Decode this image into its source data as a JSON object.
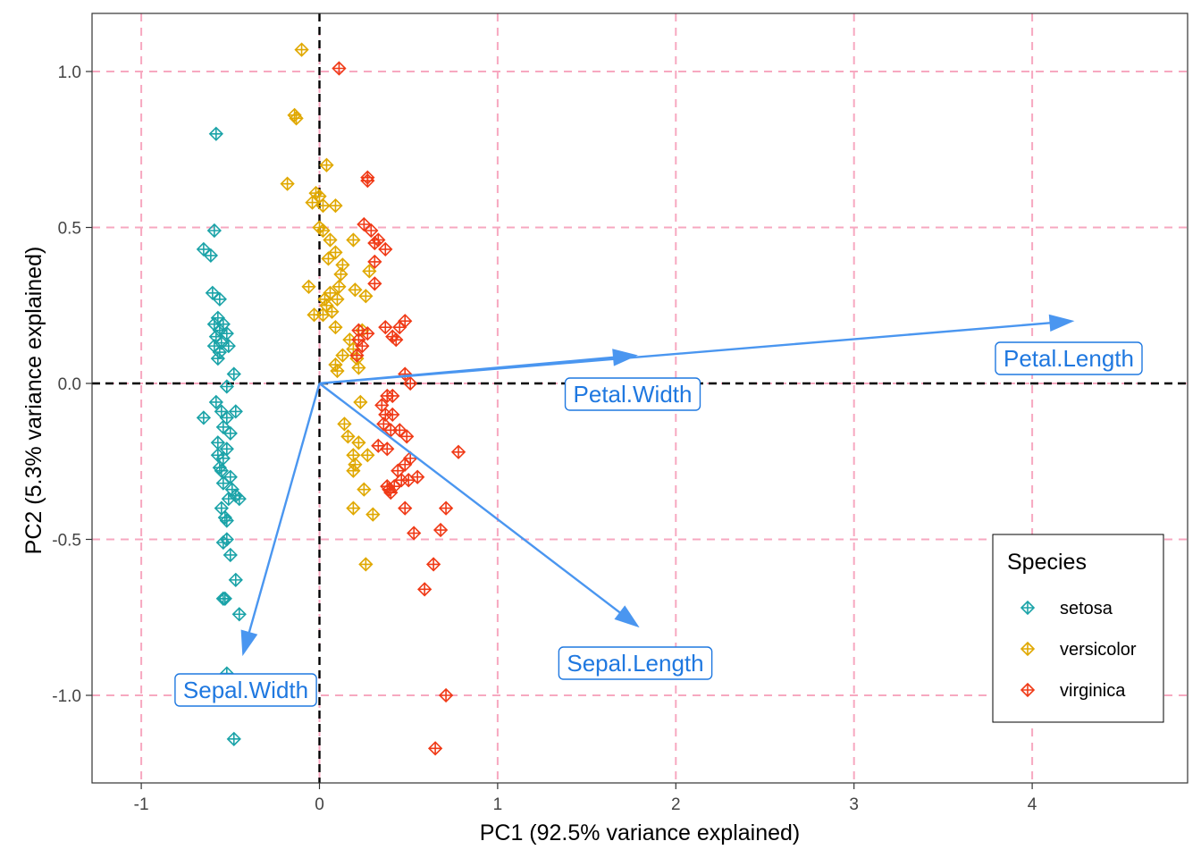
{
  "chart_data": {
    "type": "scatter",
    "xlabel": "PC1 (92.5% variance explained)",
    "ylabel": "PC2 (5.3% variance explained)",
    "xlim": [
      -1.27,
      4.85
    ],
    "ylim": [
      -1.28,
      1.18
    ],
    "x_ticks": [
      -1,
      0,
      1,
      2,
      3,
      4
    ],
    "y_ticks": [
      -1.0,
      -0.5,
      0.0,
      0.5,
      1.0
    ],
    "x_tick_labels": [
      "-1",
      "0",
      "1",
      "2",
      "3",
      "4"
    ],
    "y_tick_labels": [
      "-1.0",
      "-0.5",
      "0.0",
      "0.5",
      "1.0"
    ],
    "grid": true,
    "grid_style": "dashed",
    "grid_color": "#f7a8c0",
    "zero_lines_color": "#000000",
    "legend": {
      "title": "Species",
      "placement": "bottom-right",
      "entries": [
        "setosa",
        "versicolor",
        "virginica"
      ]
    },
    "series": [
      {
        "name": "setosa",
        "color": "#1ba3a8",
        "points": [
          [
            -0.58,
            0.8
          ],
          [
            -0.59,
            0.49
          ],
          [
            -0.65,
            0.43
          ],
          [
            -0.61,
            0.41
          ],
          [
            -0.6,
            0.29
          ],
          [
            -0.56,
            0.27
          ],
          [
            -0.57,
            0.21
          ],
          [
            -0.59,
            0.19
          ],
          [
            -0.54,
            0.19
          ],
          [
            -0.56,
            0.17
          ],
          [
            -0.52,
            0.16
          ],
          [
            -0.58,
            0.15
          ],
          [
            -0.55,
            0.13
          ],
          [
            -0.59,
            0.12
          ],
          [
            -0.51,
            0.12
          ],
          [
            -0.56,
            0.1
          ],
          [
            -0.57,
            0.08
          ],
          [
            -0.48,
            0.03
          ],
          [
            -0.52,
            -0.01
          ],
          [
            -0.58,
            -0.06
          ],
          [
            -0.55,
            -0.09
          ],
          [
            -0.47,
            -0.09
          ],
          [
            -0.52,
            -0.11
          ],
          [
            -0.65,
            -0.11
          ],
          [
            -0.54,
            -0.14
          ],
          [
            -0.5,
            -0.16
          ],
          [
            -0.57,
            -0.19
          ],
          [
            -0.52,
            -0.21
          ],
          [
            -0.57,
            -0.23
          ],
          [
            -0.54,
            -0.24
          ],
          [
            -0.56,
            -0.27
          ],
          [
            -0.55,
            -0.28
          ],
          [
            -0.5,
            -0.3
          ],
          [
            -0.54,
            -0.32
          ],
          [
            -0.49,
            -0.34
          ],
          [
            -0.47,
            -0.36
          ],
          [
            -0.51,
            -0.37
          ],
          [
            -0.45,
            -0.37
          ],
          [
            -0.53,
            -0.43
          ],
          [
            -0.52,
            -0.44
          ],
          [
            -0.52,
            -0.5
          ],
          [
            -0.54,
            -0.51
          ],
          [
            -0.5,
            -0.55
          ],
          [
            -0.47,
            -0.63
          ],
          [
            -0.53,
            -0.69
          ],
          [
            -0.54,
            -0.69
          ],
          [
            -0.45,
            -0.74
          ],
          [
            -0.52,
            -0.93
          ],
          [
            -0.48,
            -1.14
          ],
          [
            -0.55,
            -0.4
          ]
        ]
      },
      {
        "name": "versicolor",
        "color": "#e0a800",
        "points": [
          [
            -0.1,
            1.07
          ],
          [
            -0.14,
            0.86
          ],
          [
            -0.13,
            0.85
          ],
          [
            0.04,
            0.7
          ],
          [
            -0.18,
            0.64
          ],
          [
            -0.02,
            0.61
          ],
          [
            0.0,
            0.6
          ],
          [
            -0.04,
            0.58
          ],
          [
            0.09,
            0.57
          ],
          [
            0.02,
            0.57
          ],
          [
            0.0,
            0.5
          ],
          [
            0.02,
            0.49
          ],
          [
            0.06,
            0.46
          ],
          [
            0.19,
            0.46
          ],
          [
            0.09,
            0.42
          ],
          [
            0.05,
            0.4
          ],
          [
            0.13,
            0.38
          ],
          [
            0.28,
            0.36
          ],
          [
            0.12,
            0.35
          ],
          [
            -0.06,
            0.31
          ],
          [
            0.11,
            0.31
          ],
          [
            0.2,
            0.3
          ],
          [
            0.06,
            0.29
          ],
          [
            0.03,
            0.27
          ],
          [
            0.1,
            0.27
          ],
          [
            0.26,
            0.28
          ],
          [
            0.04,
            0.25
          ],
          [
            0.07,
            0.23
          ],
          [
            0.02,
            0.22
          ],
          [
            -0.03,
            0.22
          ],
          [
            0.09,
            0.18
          ],
          [
            0.24,
            0.17
          ],
          [
            0.17,
            0.14
          ],
          [
            0.19,
            0.11
          ],
          [
            0.13,
            0.09
          ],
          [
            0.21,
            0.08
          ],
          [
            0.22,
            0.05
          ],
          [
            0.09,
            0.06
          ],
          [
            0.1,
            0.04
          ],
          [
            0.23,
            -0.06
          ],
          [
            0.14,
            -0.13
          ],
          [
            0.16,
            -0.17
          ],
          [
            0.22,
            -0.19
          ],
          [
            0.19,
            -0.23
          ],
          [
            0.27,
            -0.23
          ],
          [
            0.2,
            -0.26
          ],
          [
            0.19,
            -0.28
          ],
          [
            0.25,
            -0.34
          ],
          [
            0.19,
            -0.4
          ],
          [
            0.3,
            -0.42
          ],
          [
            0.26,
            -0.58
          ]
        ]
      },
      {
        "name": "virginica",
        "color": "#f03a17",
        "points": [
          [
            0.11,
            1.01
          ],
          [
            0.27,
            0.66
          ],
          [
            0.27,
            0.65
          ],
          [
            0.25,
            0.51
          ],
          [
            0.29,
            0.49
          ],
          [
            0.33,
            0.46
          ],
          [
            0.31,
            0.45
          ],
          [
            0.37,
            0.43
          ],
          [
            0.31,
            0.39
          ],
          [
            0.31,
            0.32
          ],
          [
            0.48,
            0.2
          ],
          [
            0.37,
            0.18
          ],
          [
            0.45,
            0.18
          ],
          [
            0.41,
            0.15
          ],
          [
            0.22,
            0.17
          ],
          [
            0.27,
            0.16
          ],
          [
            0.43,
            0.14
          ],
          [
            0.22,
            0.14
          ],
          [
            0.24,
            0.12
          ],
          [
            0.21,
            0.09
          ],
          [
            0.48,
            0.03
          ],
          [
            0.51,
            0.0
          ],
          [
            0.38,
            -0.04
          ],
          [
            0.41,
            -0.04
          ],
          [
            0.35,
            -0.07
          ],
          [
            0.37,
            -0.1
          ],
          [
            0.41,
            -0.1
          ],
          [
            0.36,
            -0.13
          ],
          [
            0.4,
            -0.15
          ],
          [
            0.45,
            -0.15
          ],
          [
            0.49,
            -0.17
          ],
          [
            0.33,
            -0.2
          ],
          [
            0.38,
            -0.21
          ],
          [
            0.78,
            -0.22
          ],
          [
            0.51,
            -0.24
          ],
          [
            0.48,
            -0.26
          ],
          [
            0.44,
            -0.28
          ],
          [
            0.55,
            -0.3
          ],
          [
            0.46,
            -0.31
          ],
          [
            0.5,
            -0.31
          ],
          [
            0.38,
            -0.33
          ],
          [
            0.42,
            -0.33
          ],
          [
            0.4,
            -0.35
          ],
          [
            0.39,
            -0.34
          ],
          [
            0.48,
            -0.4
          ],
          [
            0.71,
            -0.4
          ],
          [
            0.53,
            -0.48
          ],
          [
            0.68,
            -0.47
          ],
          [
            0.64,
            -0.58
          ],
          [
            0.59,
            -0.66
          ],
          [
            0.71,
            -1.0
          ],
          [
            0.65,
            -1.17
          ]
        ]
      }
    ],
    "loadings": [
      {
        "name": "Petal.Length",
        "x": 4.23,
        "y": 0.2
      },
      {
        "name": "Petal.Width",
        "x": 1.78,
        "y": 0.09
      },
      {
        "name": "Sepal.Length",
        "x": 1.79,
        "y": -0.78
      },
      {
        "name": "Sepal.Width",
        "x": -0.43,
        "y": -0.87
      }
    ],
    "loading_color": "#4a96f0"
  }
}
